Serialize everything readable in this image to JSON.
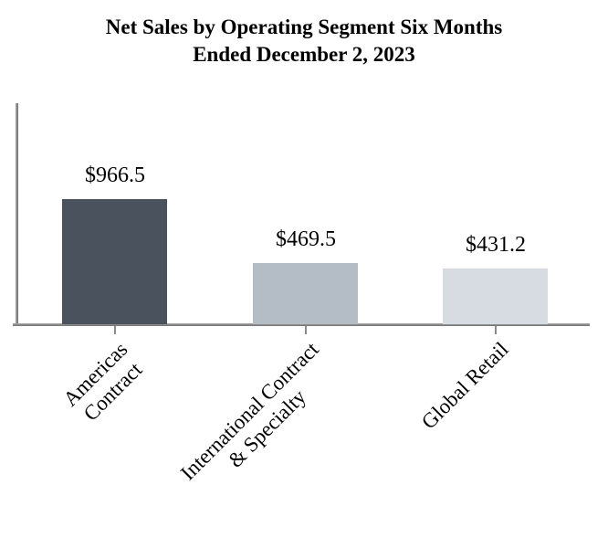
{
  "header": {
    "title_display": "Net Sales by Operating Segment Six Months\nEnded December 2, 2023"
  },
  "chart_data": {
    "type": "bar",
    "title": "Net Sales by Operating Segment Six Months Ended December 2, 2023",
    "categories": [
      "Americas\nContract",
      "International Contract\n& Specialty",
      "Global Retail"
    ],
    "values": [
      966.5,
      469.5,
      431.2
    ],
    "value_labels": [
      "$966.5",
      "$469.5",
      "$431.2"
    ],
    "bar_colors": [
      "#4a535d",
      "#b4bcc6",
      "#d6dce1"
    ],
    "axis_color": "#8c8c8c",
    "text_color": "#000000",
    "background_color": "#ffffff",
    "xlabel": "",
    "ylabel": "",
    "grid": false,
    "legend": false,
    "y_axis_tick_labels": [],
    "value_label_position": "above-bar",
    "x_tick_label_rotation_deg": 45
  }
}
